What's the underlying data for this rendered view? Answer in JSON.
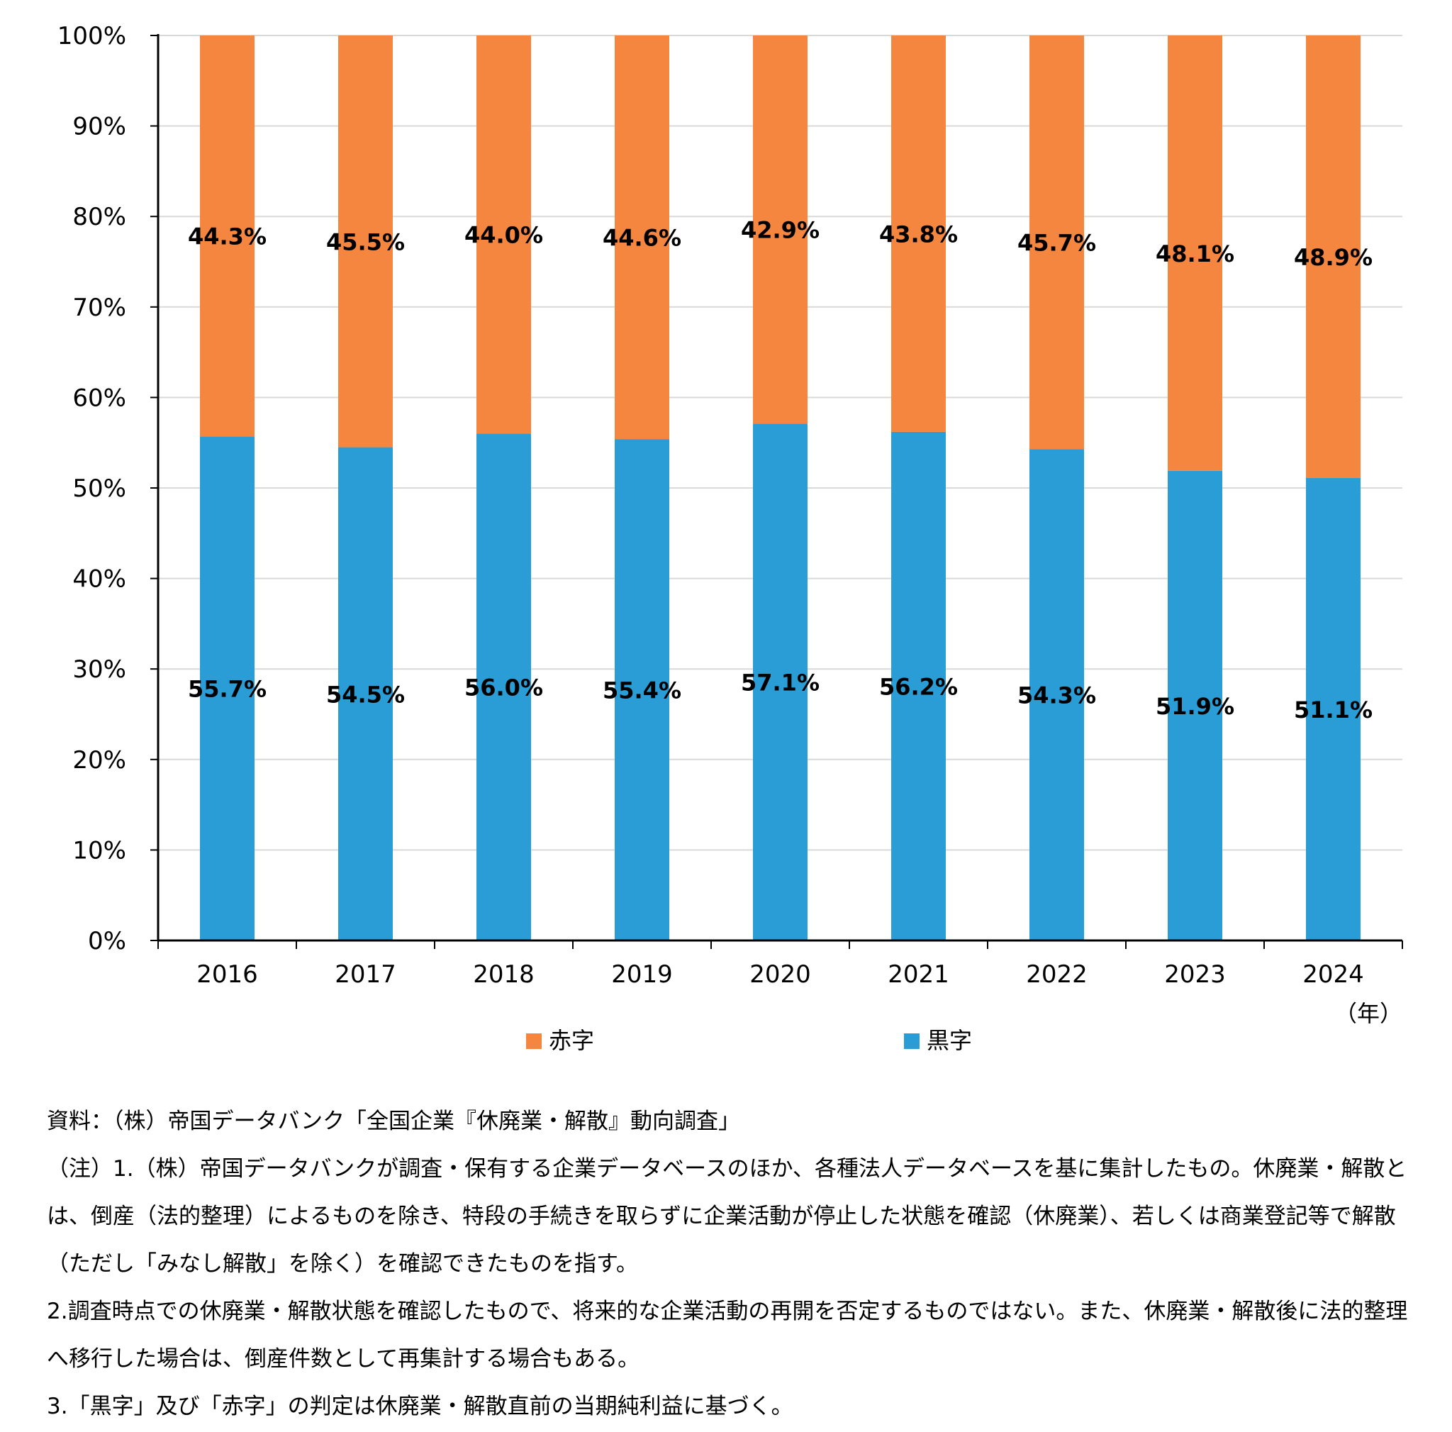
{
  "chart_data": {
    "type": "bar",
    "stacked": true,
    "categories": [
      "2016",
      "2017",
      "2018",
      "2019",
      "2020",
      "2021",
      "2022",
      "2023",
      "2024"
    ],
    "series": [
      {
        "name": "黒字",
        "color": "#2a9dd6",
        "values": [
          55.7,
          54.5,
          56.0,
          55.4,
          57.1,
          56.2,
          54.3,
          51.9,
          51.1
        ],
        "labels": [
          "55.7%",
          "54.5%",
          "56.0%",
          "55.4%",
          "57.1%",
          "56.2%",
          "54.3%",
          "51.9%",
          "51.1%"
        ]
      },
      {
        "name": "赤字",
        "color": "#f5863f",
        "values": [
          44.3,
          45.5,
          44.0,
          44.6,
          42.9,
          43.8,
          45.7,
          48.1,
          48.9
        ],
        "labels": [
          "44.3%",
          "45.5%",
          "44.0%",
          "44.6%",
          "42.9%",
          "43.8%",
          "45.7%",
          "48.1%",
          "48.9%"
        ]
      }
    ],
    "y_ticks": [
      "0%",
      "10%",
      "20%",
      "30%",
      "40%",
      "50%",
      "60%",
      "70%",
      "80%",
      "90%",
      "100%"
    ],
    "ylim": [
      0,
      100
    ],
    "x_unit": "（年）",
    "legend": [
      "赤字",
      "黒字"
    ],
    "legend_position": "bottom",
    "grid": true
  },
  "notes": {
    "source": "資料：（株）帝国データバンク「全国企業『休廃業・解散』動向調査」",
    "note1": "（注）1.（株）帝国データバンクが調査・保有する企業データベースのほか、各種法人データベースを基に集計したもの。休廃業・解散とは、倒産（法的整理）によるものを除き、特段の手続きを取らずに企業活動が停止した状態を確認（休廃業）、若しくは商業登記等で解散（ただし「みなし解散」を除く）を確認できたものを指す。",
    "note2": "2.調査時点での休廃業・解散状態を確認したもので、将来的な企業活動の再開を否定するものではない。また、休廃業・解散後に法的整理へ移行した場合は、倒産件数として再集計する場合もある。",
    "note3": "3.「黒字」及び「赤字」の判定は休廃業・解散直前の当期純利益に基づく。"
  }
}
